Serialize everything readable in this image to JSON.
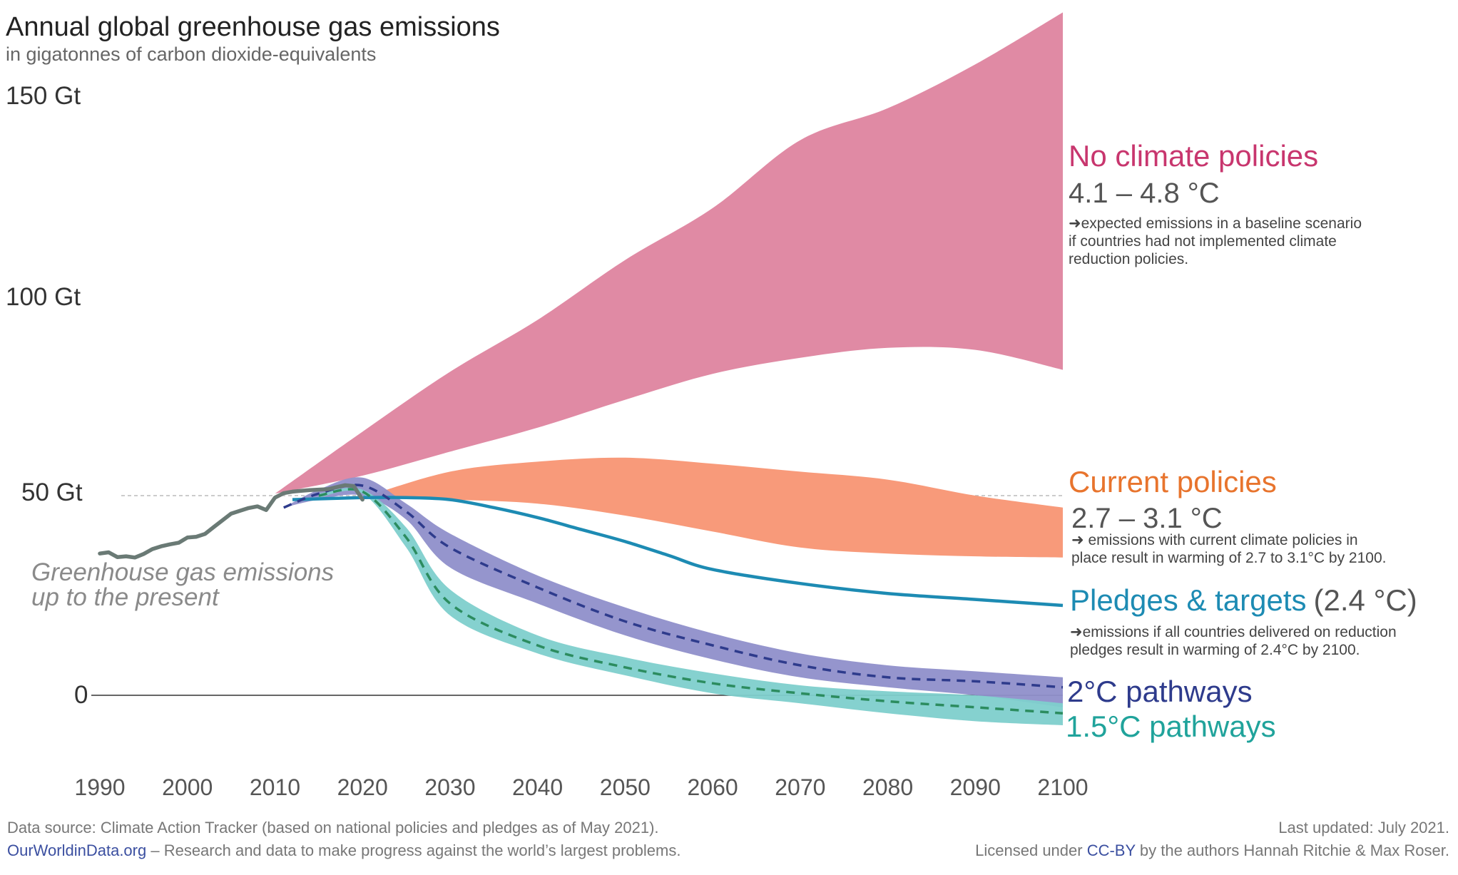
{
  "chart_data": {
    "type": "area",
    "title": "Annual global greenhouse gas emissions",
    "subtitle": "in gigatonnes of carbon dioxide-equivalents",
    "y_tick_labels": [
      "150 Gt",
      "100 Gt",
      "50 Gt",
      "0"
    ],
    "y_ticks": [
      150,
      100,
      50,
      0
    ],
    "x_ticks": [
      1990,
      2000,
      2010,
      2020,
      2030,
      2040,
      2050,
      2060,
      2070,
      2080,
      2090,
      2100
    ],
    "xlim": [
      1990,
      2100
    ],
    "ylim": [
      -10,
      172
    ],
    "reference_line": 50,
    "history": {
      "label_line1": "Greenhouse gas emissions",
      "label_line2": "up to the present",
      "color": "#6a7a75",
      "x": [
        1990,
        1991,
        1992,
        1993,
        1994,
        1995,
        1996,
        1997,
        1998,
        1999,
        2000,
        2001,
        2002,
        2003,
        2004,
        2005,
        2006,
        2007,
        2008,
        2009,
        2010,
        2011,
        2012,
        2013,
        2014,
        2015,
        2016,
        2017,
        2018,
        2019,
        2020
      ],
      "y": [
        35.5,
        35.8,
        34.6,
        34.8,
        34.5,
        35.4,
        36.6,
        37.3,
        37.8,
        38.2,
        39.5,
        39.7,
        40.4,
        42.1,
        43.8,
        45.5,
        46.2,
        46.9,
        47.3,
        46.4,
        49.5,
        50.6,
        51.0,
        51.2,
        51.4,
        51.5,
        51.6,
        52.1,
        52.6,
        52.4,
        49.0
      ]
    },
    "scenarios": [
      {
        "name": "No climate policies",
        "temperature": "4.1 – 4.8 °C",
        "note_line1": "expected emissions in a baseline scenario",
        "note_line2": "if countries had not implemented climate",
        "note_line3": "reduction policies.",
        "color": "#e08aa4",
        "label_color": "#c8366e",
        "x": [
          2010,
          2020,
          2030,
          2040,
          2050,
          2060,
          2070,
          2080,
          2090,
          2100
        ],
        "y_low": [
          50.5,
          55.0,
          61.0,
          67.0,
          74.0,
          80.5,
          84.5,
          87.0,
          86.5,
          81.5
        ],
        "y_high": [
          50.5,
          66.0,
          81.0,
          94.0,
          109.0,
          122.0,
          139.0,
          147.0,
          158.0,
          171.0
        ]
      },
      {
        "name": "Current policies",
        "temperature": "2.7 – 3.1 °C",
        "note_line1": "emissions with current climate policies in",
        "note_line2": "place result in warming of 2.7 to 3.1°C by 2100.",
        "color": "#f89a7a",
        "label_color": "#e8742d",
        "x": [
          2020,
          2030,
          2040,
          2050,
          2060,
          2070,
          2080,
          2090,
          2100
        ],
        "y_low": [
          49.5,
          49.0,
          48.0,
          45.0,
          41.0,
          37.0,
          35.5,
          34.8,
          34.5
        ],
        "y_high": [
          49.5,
          56.0,
          58.5,
          59.5,
          58.0,
          56.0,
          54.0,
          50.0,
          47.0
        ]
      },
      {
        "name": "Pledges & targets",
        "temperature": "(2.4 °C)",
        "note_line1": "emissions if all countries delivered on reduction",
        "note_line2": "pledges result in warming of 2.4°C by 2100.",
        "color": "#1d8bb3",
        "label_color": "#1d8bb3",
        "x": [
          2012,
          2020,
          2025,
          2030,
          2035,
          2040,
          2045,
          2050,
          2055,
          2060,
          2070,
          2080,
          2090,
          2100
        ],
        "y": [
          49.0,
          49.5,
          49.5,
          49.0,
          47.0,
          44.5,
          41.5,
          38.5,
          35.0,
          31.5,
          28.0,
          25.5,
          24.0,
          22.5
        ]
      },
      {
        "name": "2°C pathways",
        "color": "#8f8fca",
        "label_color": "#2e3b8c",
        "dash_color": "#2e3b8c",
        "x": [
          2011,
          2015,
          2020,
          2025,
          2030,
          2040,
          2050,
          2060,
          2070,
          2080,
          2090,
          2100
        ],
        "y_low": [
          47.0,
          49.0,
          50.0,
          44.0,
          32.0,
          23.0,
          15.0,
          9.0,
          4.5,
          2.0,
          0.0,
          -3.0
        ],
        "y_high": [
          47.0,
          51.5,
          54.5,
          48.0,
          40.5,
          30.0,
          22.0,
          15.5,
          10.5,
          7.5,
          6.0,
          4.5
        ],
        "y_mid": [
          47.0,
          50.5,
          52.5,
          46.0,
          37.0,
          27.0,
          18.5,
          12.5,
          7.5,
          4.5,
          3.5,
          2.0
        ]
      },
      {
        "name": "1.5°C pathways",
        "color": "#7ecfcc",
        "label_color": "#20a39b",
        "dash_color": "#2c8c5f",
        "x": [
          2015,
          2020,
          2025,
          2030,
          2040,
          2050,
          2060,
          2070,
          2080,
          2090,
          2100
        ],
        "y_low": [
          49.5,
          50.5,
          37.0,
          20.0,
          10.5,
          5.0,
          0.5,
          -2.0,
          -4.5,
          -6.5,
          -7.5
        ],
        "y_high": [
          50.5,
          51.5,
          42.0,
          26.5,
          15.0,
          9.5,
          5.5,
          2.5,
          1.0,
          0.0,
          -2.0
        ],
        "y_mid": [
          50.0,
          51.0,
          39.5,
          23.0,
          12.5,
          7.0,
          3.0,
          0.5,
          -1.5,
          -3.0,
          -4.5
        ]
      }
    ]
  },
  "footer": {
    "source": "Data source: Climate Action Tracker (based on national policies and pledges as of May 2021).",
    "owid_link": "OurWorldinData.org",
    "owid_tagline": " – Research and data to make progress against the world’s largest problems.",
    "updated": "Last updated: July 2021.",
    "license_prefix": "Licensed under ",
    "license_link": "CC-BY",
    "license_suffix": " by the authors Hannah Ritchie & Max Roser."
  },
  "colors": {
    "zero_line": "#333333",
    "ref_line": "#bbbbbb",
    "link": "#3b4fa0"
  }
}
